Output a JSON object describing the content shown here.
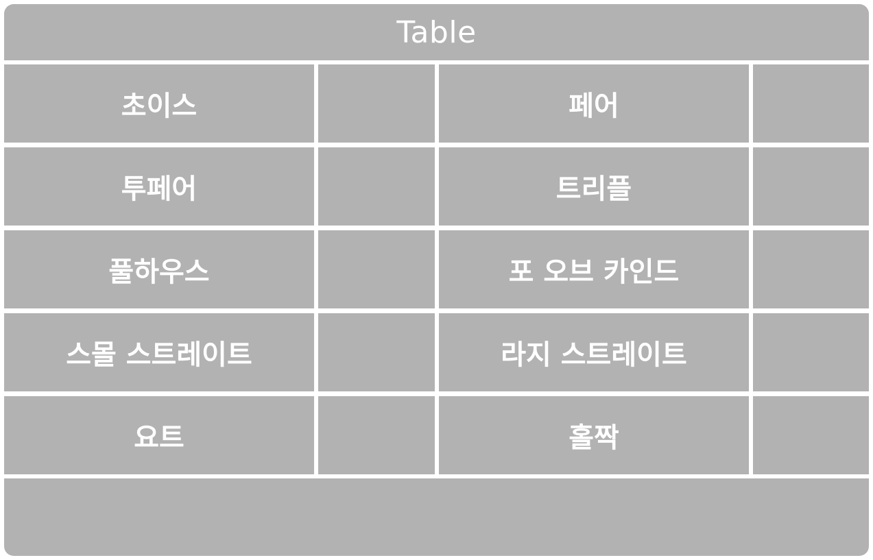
{
  "table": {
    "title": "Table",
    "rows": [
      {
        "left_label": "초이스",
        "left_value": "",
        "right_label": "페어",
        "right_value": ""
      },
      {
        "left_label": "투페어",
        "left_value": "",
        "right_label": "트리플",
        "right_value": ""
      },
      {
        "left_label": "풀하우스",
        "left_value": "",
        "right_label": "포 오브 카인드",
        "right_value": ""
      },
      {
        "left_label": "스몰 스트레이트",
        "left_value": "",
        "right_label": "라지 스트레이트",
        "right_value": ""
      },
      {
        "left_label": "요트",
        "left_value": "",
        "right_label": "홀짝",
        "right_value": ""
      }
    ],
    "footer_text": ""
  },
  "colors": {
    "panel": "#b2b2b2",
    "divider": "#ffffff",
    "text": "#ffffff"
  }
}
